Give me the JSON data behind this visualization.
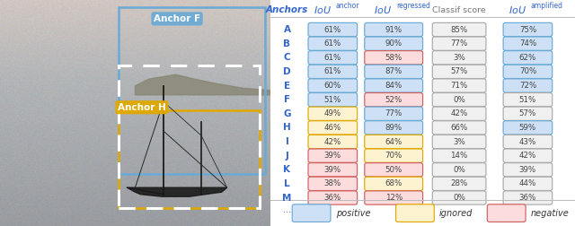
{
  "anchors": [
    "A",
    "B",
    "C",
    "D",
    "E",
    "F",
    "G",
    "H",
    "I",
    "J",
    "K",
    "L",
    "M"
  ],
  "iou_anchor": [
    "61%",
    "61%",
    "61%",
    "61%",
    "60%",
    "51%",
    "49%",
    "46%",
    "42%",
    "39%",
    "39%",
    "38%",
    "36%"
  ],
  "iou_regressed": [
    "91%",
    "90%",
    "58%",
    "87%",
    "84%",
    "52%",
    "77%",
    "89%",
    "64%",
    "70%",
    "50%",
    "68%",
    "12%"
  ],
  "classif_score": [
    "85%",
    "77%",
    "3%",
    "57%",
    "71%",
    "0%",
    "42%",
    "66%",
    "3%",
    "14%",
    "0%",
    "28%",
    "0%"
  ],
  "iou_amplified": [
    "75%",
    "74%",
    "62%",
    "70%",
    "72%",
    "51%",
    "57%",
    "59%",
    "43%",
    "42%",
    "39%",
    "44%",
    "36%"
  ],
  "iou_anchor_color": [
    "blue",
    "blue",
    "blue",
    "blue",
    "blue",
    "blue",
    "yellow",
    "yellow",
    "yellow",
    "red",
    "red",
    "red",
    "red"
  ],
  "iou_regressed_color": [
    "blue",
    "blue",
    "red",
    "blue",
    "blue",
    "red",
    "blue",
    "blue",
    "yellow",
    "yellow",
    "red",
    "yellow",
    "red"
  ],
  "classif_score_color": [
    "gray",
    "gray",
    "gray",
    "gray",
    "gray",
    "gray",
    "gray",
    "gray",
    "gray",
    "gray",
    "gray",
    "gray",
    "gray"
  ],
  "iou_amplified_color": [
    "blue",
    "blue",
    "blue",
    "blue",
    "blue",
    "gray",
    "gray",
    "blue",
    "gray",
    "gray",
    "gray",
    "gray",
    "gray"
  ],
  "blue_fill": "#cde0f5",
  "blue_edge": "#6aaad4",
  "yellow_fill": "#fef3d0",
  "yellow_edge": "#e0a800",
  "red_fill": "#fcdcdc",
  "red_edge": "#d06060",
  "gray_fill": "#f0f0f0",
  "gray_edge": "#aaaaaa",
  "anchor_label_color": "#3366cc",
  "header_color": "#3366cc",
  "classif_header_color": "#777777",
  "separator_color": "#bbbbbb"
}
